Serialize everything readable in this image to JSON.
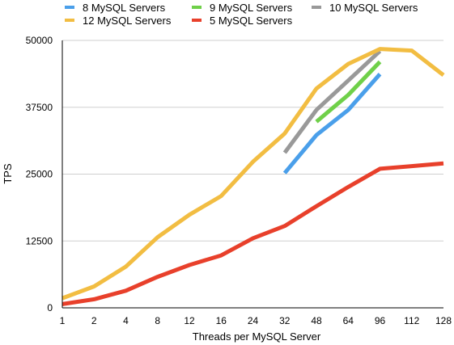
{
  "chart_data": {
    "type": "line",
    "title": "",
    "xlabel": "Threads per MySQL Server",
    "ylabel": "TPS",
    "categories": [
      "1",
      "2",
      "4",
      "8",
      "12",
      "16",
      "24",
      "32",
      "48",
      "64",
      "96",
      "112",
      "128"
    ],
    "ylim": [
      0,
      50000
    ],
    "yticks": [
      "0",
      "12500",
      "25000",
      "37500",
      "50000"
    ],
    "grid": true,
    "legend_position": "top",
    "series": [
      {
        "name": "8 MySQL Servers",
        "color": "#4A9FEA",
        "values": [
          null,
          null,
          null,
          null,
          null,
          null,
          null,
          25200,
          32300,
          37000,
          43700,
          null,
          null
        ]
      },
      {
        "name": "9 MySQL Servers",
        "color": "#6FD049",
        "values": [
          null,
          null,
          null,
          null,
          null,
          null,
          null,
          null,
          34800,
          39800,
          46000,
          null,
          null
        ]
      },
      {
        "name": "10 MySQL Servers",
        "color": "#999999",
        "values": [
          null,
          null,
          null,
          null,
          null,
          null,
          null,
          29000,
          37000,
          42500,
          48000,
          null,
          null
        ]
      },
      {
        "name": "12 MySQL Servers",
        "color": "#F2BD42",
        "values": [
          1800,
          4000,
          7700,
          13200,
          17400,
          20900,
          27300,
          32600,
          41000,
          45600,
          48400,
          48100,
          43500
        ]
      },
      {
        "name": "5 MySQL Servers",
        "color": "#E8402B",
        "values": [
          700,
          1600,
          3200,
          5800,
          8000,
          9800,
          13000,
          15300,
          19000,
          22600,
          26000,
          26500,
          27000
        ]
      }
    ]
  }
}
